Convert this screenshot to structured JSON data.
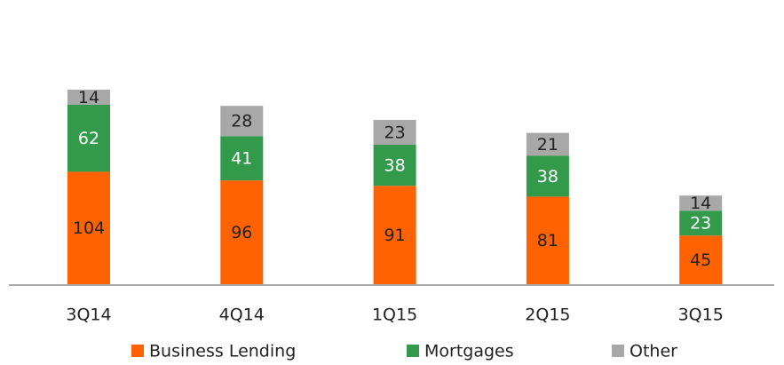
{
  "chart_data": {
    "type": "stacked_bar",
    "categories": [
      "3Q14",
      "4Q14",
      "1Q15",
      "2Q15",
      "3Q15"
    ],
    "series": [
      {
        "name": "Business Lending",
        "color": "#ff6200",
        "values": [
          104,
          96,
          91,
          81,
          45
        ]
      },
      {
        "name": "Mortgages",
        "color": "#349a4b",
        "values": [
          62,
          41,
          38,
          38,
          23
        ]
      },
      {
        "name": "Other",
        "color": "#a8a8a8",
        "values": [
          14,
          28,
          23,
          21,
          14
        ]
      }
    ],
    "legend": "bottom"
  }
}
